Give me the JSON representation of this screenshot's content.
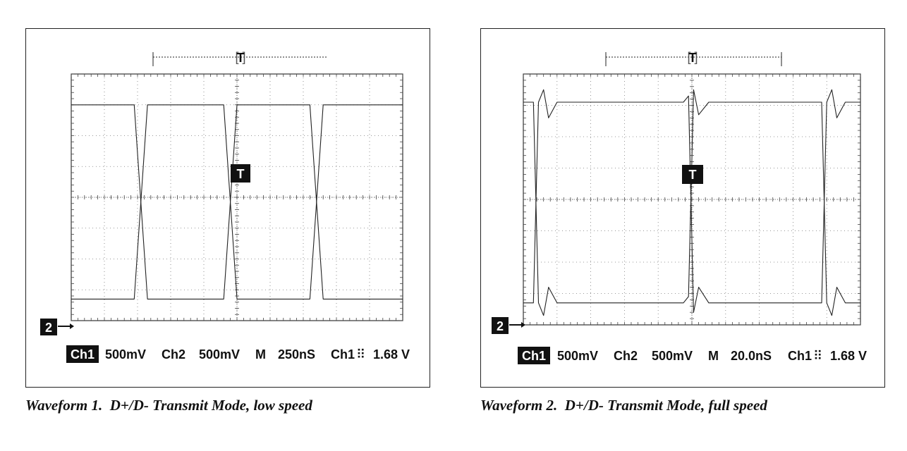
{
  "captions": [
    "Waveform 1.  D+/D- Transmit Mode, low speed",
    "Waveform 2.  D+/D- Transmit Mode, full speed"
  ],
  "chart_data": [
    {
      "type": "line",
      "title": "Waveform 1.  D+/D- Transmit Mode, low speed",
      "trigger_marker": "T",
      "channel_marker": "2",
      "grid": true,
      "status_bar": {
        "ch1": "Ch1",
        "ch1_scale": "500mV",
        "ch2": "Ch2",
        "ch2_scale": "500mV",
        "m": "M",
        "timebase": "250nS",
        "trigger_source": "Ch1",
        "trigger_level": "1.68 V"
      },
      "x_divisions": 10,
      "y_divisions": 8,
      "xlim_div": [
        0,
        10
      ],
      "ylim_div": [
        -4,
        4
      ],
      "series": [
        {
          "values_div": {
            "x": [
              0,
              1.9,
              2.3,
              4.6,
              5.0,
              7.2,
              7.6,
              10
            ],
            "y": [
              3.0,
              3.0,
              -3.3,
              -3.3,
              3.0,
              3.0,
              -3.3,
              -3.3
            ]
          }
        },
        {
          "values_div": {
            "x": [
              0,
              1.9,
              2.3,
              4.6,
              5.0,
              7.2,
              7.6,
              10
            ],
            "y": [
              -3.3,
              -3.3,
              3.0,
              3.0,
              -3.3,
              -3.3,
              3.0,
              3.0
            ]
          }
        }
      ]
    },
    {
      "type": "line",
      "title": "Waveform 2.  D+/D- Transmit Mode, full speed",
      "trigger_marker": "T",
      "channel_marker": "2",
      "grid": true,
      "status_bar": {
        "ch1": "Ch1",
        "ch1_scale": "500mV",
        "ch2": "Ch2",
        "ch2_scale": "500mV",
        "m": "M",
        "timebase": "20.0nS",
        "trigger_source": "Ch1",
        "trigger_level": "1.68 V"
      },
      "x_divisions": 10,
      "y_divisions": 8,
      "xlim_div": [
        0,
        10
      ],
      "ylim_div": [
        -4,
        4
      ],
      "series": [
        {
          "values_div": {
            "x": [
              0,
              0.3,
              0.45,
              0.6,
              0.75,
              1.0,
              4.75,
              4.9,
              5.05,
              5.2,
              5.5,
              8.85,
              9.0,
              9.15,
              9.3,
              9.55,
              10
            ],
            "y": [
              3.1,
              3.1,
              -3.3,
              -3.7,
              -2.8,
              -3.3,
              -3.3,
              -3.1,
              3.5,
              2.7,
              3.1,
              3.1,
              -3.3,
              -3.7,
              -2.8,
              -3.3,
              -3.3
            ]
          }
        },
        {
          "values_div": {
            "x": [
              0,
              0.3,
              0.45,
              0.6,
              0.75,
              1.0,
              4.75,
              4.9,
              5.05,
              5.2,
              5.5,
              8.85,
              9.0,
              9.15,
              9.3,
              9.55,
              10
            ],
            "y": [
              -3.3,
              -3.3,
              3.1,
              3.5,
              2.6,
              3.1,
              3.1,
              3.3,
              -3.6,
              -2.8,
              -3.3,
              -3.3,
              3.1,
              3.5,
              2.6,
              3.1,
              3.1
            ]
          }
        }
      ]
    }
  ]
}
